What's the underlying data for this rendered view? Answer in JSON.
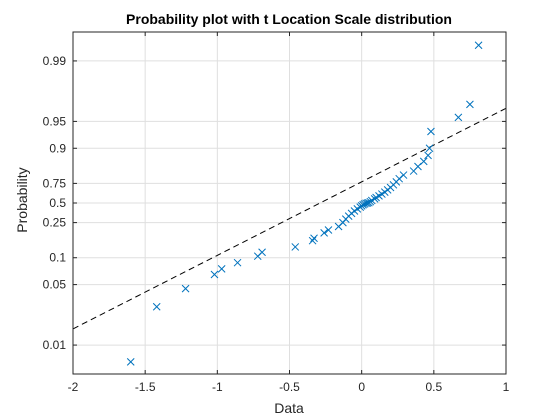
{
  "chart_data": {
    "type": "scatter",
    "title": "Probability plot with t Location Scale distribution",
    "xlabel": "Data",
    "ylabel": "Probability",
    "xlim": [
      -2,
      1
    ],
    "xticks": [
      -2,
      -1.5,
      -1,
      -0.5,
      0,
      0.5,
      1
    ],
    "xtick_labels": [
      "-2",
      "-1.5",
      "-1",
      "-0.5",
      "0",
      "0.5",
      "1"
    ],
    "yticks": [
      0.01,
      0.05,
      0.1,
      0.25,
      0.5,
      0.75,
      0.9,
      0.95,
      0.99
    ],
    "ytick_labels": [
      "0.01",
      "0.05",
      "0.1",
      "0.25",
      "0.5",
      "0.75",
      "0.9",
      "0.95",
      "0.99"
    ],
    "grid": true,
    "marker_color": "#0072BD",
    "reference_line_color": "#000000",
    "reference_line": {
      "style": "dashed",
      "x": [
        -2,
        1
      ],
      "probability": [
        0.0155,
        0.9645
      ]
    },
    "series": [
      {
        "marker": "x",
        "points": [
          {
            "x": -1.6,
            "y": 0.0063
          },
          {
            "x": -1.42,
            "y": 0.028
          },
          {
            "x": -1.22,
            "y": 0.045
          },
          {
            "x": -1.02,
            "y": 0.065
          },
          {
            "x": -0.97,
            "y": 0.075
          },
          {
            "x": -0.86,
            "y": 0.088
          },
          {
            "x": -0.72,
            "y": 0.104
          },
          {
            "x": -0.69,
            "y": 0.115
          },
          {
            "x": -0.46,
            "y": 0.132
          },
          {
            "x": -0.34,
            "y": 0.155
          },
          {
            "x": -0.33,
            "y": 0.165
          },
          {
            "x": -0.26,
            "y": 0.19
          },
          {
            "x": -0.23,
            "y": 0.205
          },
          {
            "x": -0.16,
            "y": 0.225
          },
          {
            "x": -0.13,
            "y": 0.25
          },
          {
            "x": -0.11,
            "y": 0.275
          },
          {
            "x": -0.09,
            "y": 0.3
          },
          {
            "x": -0.07,
            "y": 0.325
          },
          {
            "x": -0.05,
            "y": 0.35
          },
          {
            "x": -0.03,
            "y": 0.375
          },
          {
            "x": -0.01,
            "y": 0.4
          },
          {
            "x": 0.0,
            "y": 0.42
          },
          {
            "x": 0.01,
            "y": 0.44
          },
          {
            "x": 0.02,
            "y": 0.46
          },
          {
            "x": 0.03,
            "y": 0.48
          },
          {
            "x": 0.04,
            "y": 0.5
          },
          {
            "x": 0.05,
            "y": 0.52
          },
          {
            "x": 0.06,
            "y": 0.55
          },
          {
            "x": 0.07,
            "y": 0.575
          },
          {
            "x": 0.09,
            "y": 0.6
          },
          {
            "x": 0.1,
            "y": 0.62
          },
          {
            "x": 0.12,
            "y": 0.64
          },
          {
            "x": 0.14,
            "y": 0.66
          },
          {
            "x": 0.16,
            "y": 0.68
          },
          {
            "x": 0.18,
            "y": 0.7
          },
          {
            "x": 0.2,
            "y": 0.72
          },
          {
            "x": 0.22,
            "y": 0.74
          },
          {
            "x": 0.24,
            "y": 0.76
          },
          {
            "x": 0.26,
            "y": 0.78
          },
          {
            "x": 0.29,
            "y": 0.8
          },
          {
            "x": 0.36,
            "y": 0.82
          },
          {
            "x": 0.39,
            "y": 0.84
          },
          {
            "x": 0.43,
            "y": 0.86
          },
          {
            "x": 0.46,
            "y": 0.88
          },
          {
            "x": 0.47,
            "y": 0.9
          },
          {
            "x": 0.48,
            "y": 0.935
          },
          {
            "x": 0.67,
            "y": 0.955
          },
          {
            "x": 0.75,
            "y": 0.968
          },
          {
            "x": 0.81,
            "y": 0.9935
          }
        ]
      }
    ]
  }
}
